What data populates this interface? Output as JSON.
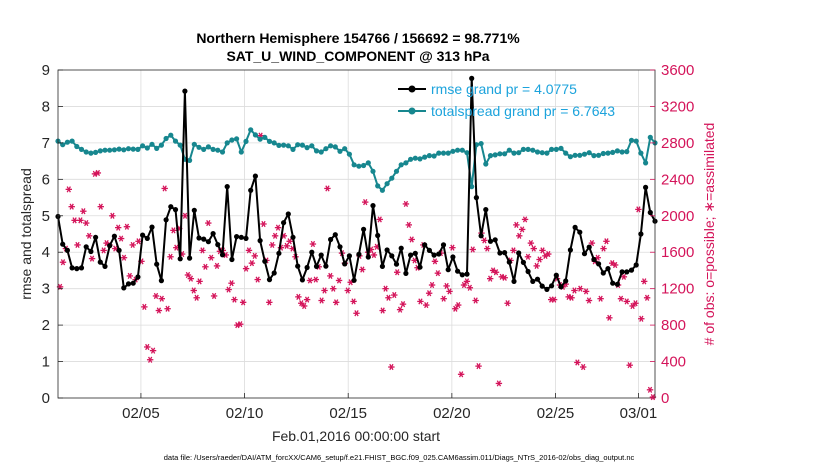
{
  "chart_data": {
    "type": "line",
    "title": "Northern Hemisphere 154766 / 156692 = 98.771%",
    "subtitle": "SAT_U_WIND_COMPONENT @ 313 hPa",
    "xlabel": "Feb.01,2016 00:00:00 start",
    "ylabel_left": "rmse and totalspread",
    "ylabel_right": "# of obs: o=possible; ∗=assimilated",
    "footer": "data file: /Users/raeder/DAI/ATM_forcXX/CAM6_setup/f.e21.FHIST_BGC.f09_025.CAM6assim.011/Diags_NTrS_2016-02/obs_diag_output.nc",
    "x_range_days": [
      1,
      29.8
    ],
    "x_ticks": [
      {
        "day": 5,
        "label": "02/05"
      },
      {
        "day": 10,
        "label": "02/10"
      },
      {
        "day": 15,
        "label": "02/15"
      },
      {
        "day": 20,
        "label": "02/20"
      },
      {
        "day": 25,
        "label": "02/25"
      },
      {
        "day": 29,
        "label": "03/01"
      }
    ],
    "y_left": {
      "min": 0,
      "max": 9,
      "ticks": [
        "0",
        "1",
        "2",
        "3",
        "4",
        "5",
        "6",
        "7",
        "8",
        "9"
      ]
    },
    "y_right": {
      "min": 0,
      "max": 3600,
      "ticks": [
        "0",
        "400",
        "800",
        "1200",
        "1600",
        "2000",
        "2400",
        "2800",
        "3200",
        "3600"
      ]
    },
    "colors": {
      "rmse": "#000000",
      "spread": "#17878f",
      "obs": "#d4145a",
      "legend_text": "#1ca3dc",
      "right_axis": "#d4145a"
    },
    "series": [
      {
        "name": "rmse grand pr = 4.0775",
        "axis": "left",
        "values": [
          4.98,
          4.22,
          4.05,
          3.57,
          3.55,
          3.57,
          4.15,
          4.02,
          4.41,
          3.73,
          3.61,
          4.18,
          4.44,
          4.05,
          3.02,
          3.13,
          3.15,
          3.32,
          4.47,
          4.38,
          4.69,
          3.67,
          3.22,
          4.89,
          5.25,
          5.17,
          3.82,
          8.42,
          3.84,
          5.15,
          4.39,
          4.36,
          4.29,
          4.51,
          4.21,
          3.93,
          5.8,
          3.8,
          4.43,
          4.41,
          4.38,
          5.7,
          6.09,
          4.32,
          3.75,
          3.25,
          3.43,
          3.97,
          4.81,
          5.05,
          4.41,
          3.62,
          3.24,
          3.58,
          4.0,
          3.61,
          3.92,
          3.62,
          4.35,
          4.48,
          4.15,
          3.68,
          3.9,
          3.23,
          3.94,
          4.63,
          3.87,
          5.28,
          4.46,
          3.61,
          4.06,
          3.9,
          3.67,
          4.11,
          3.42,
          3.92,
          3.97,
          3.59,
          4.2,
          4.05,
          3.92,
          3.95,
          4.2,
          3.52,
          3.87,
          3.48,
          3.38,
          3.4,
          8.77,
          5.5,
          4.45,
          5.17,
          4.3,
          4.34,
          3.98,
          3.99,
          3.73,
          3.2,
          3.98,
          3.72,
          3.47,
          3.2,
          3.26,
          3.07,
          2.98,
          3.08,
          3.37,
          3.05,
          3.21,
          4.06,
          4.68,
          4.55,
          3.96,
          4.14,
          3.8,
          3.68,
          3.43,
          3.55,
          3.15,
          3.12,
          3.46,
          3.46,
          3.51,
          3.65,
          4.5,
          5.78,
          5.09,
          4.85
        ]
      },
      {
        "name": "totalspread grand pr = 6.7643",
        "axis": "left",
        "values": [
          7.05,
          6.95,
          7.02,
          7.05,
          6.9,
          6.82,
          6.75,
          6.72,
          6.74,
          6.78,
          6.8,
          6.8,
          6.81,
          6.83,
          6.81,
          6.84,
          6.83,
          6.82,
          6.92,
          6.86,
          6.96,
          6.85,
          6.94,
          7.12,
          7.21,
          7.05,
          6.94,
          6.55,
          6.52,
          6.96,
          6.88,
          6.82,
          6.89,
          6.82,
          6.8,
          6.75,
          7.0,
          7.08,
          7.11,
          6.75,
          7.04,
          7.36,
          7.22,
          7.1,
          7.15,
          7.04,
          7.0,
          6.93,
          6.94,
          6.92,
          6.82,
          6.95,
          6.94,
          6.87,
          6.92,
          6.78,
          6.75,
          6.84,
          6.92,
          6.89,
          6.77,
          6.84,
          6.69,
          6.4,
          6.36,
          6.38,
          6.45,
          6.22,
          5.82,
          5.7,
          5.88,
          6.03,
          6.22,
          6.4,
          6.45,
          6.55,
          6.58,
          6.56,
          6.61,
          6.65,
          6.64,
          6.72,
          6.72,
          6.72,
          6.77,
          6.8,
          6.8,
          6.73,
          5.8,
          6.95,
          6.98,
          6.42,
          6.65,
          6.67,
          6.7,
          6.7,
          6.8,
          6.72,
          6.73,
          6.82,
          6.82,
          6.8,
          6.75,
          6.73,
          6.72,
          6.82,
          6.82,
          6.85,
          6.72,
          6.62,
          6.66,
          6.66,
          6.69,
          6.73,
          6.65,
          6.66,
          6.71,
          6.72,
          6.74,
          6.78,
          6.75,
          6.76,
          7.07,
          7.05,
          6.72,
          6.45,
          7.15,
          7.0
        ]
      },
      {
        "name": "assimilated",
        "axis": "right",
        "marker": "asterisk",
        "values": [
          1220,
          1490,
          1640,
          2290,
          2100,
          1950,
          1680,
          1950,
          2050,
          1920,
          1780,
          1530,
          2460,
          2470,
          2100,
          1620,
          1700,
          1680,
          2000,
          1640,
          1870,
          1750,
          1540,
          1880,
          1340,
          1680,
          1300,
          1720,
          1500,
          1000,
          560,
          420,
          520,
          1120,
          960,
          1090,
          2300,
          980,
          1550,
          1840,
          1650,
          1860,
          1580,
          2000,
          1350,
          1310,
          1180,
          1100,
          1280,
          1620,
          1440,
          1920,
          1540,
          1120,
          1450,
          1610,
          1620,
          1570,
          1190,
          1260,
          1080,
          800,
          810,
          1050,
          1420,
          1620,
          1480,
          1560,
          1300,
          2880,
          1910,
          1510,
          1050,
          1680,
          1780,
          1870,
          1650,
          1780,
          1670,
          1720,
          1640,
          1550,
          1110,
          1040,
          1010,
          1080,
          1290,
          1690,
          1300,
          1440,
          1070,
          1180,
          2300,
          1340,
          1200,
          1050,
          1290,
          1590,
          1480,
          1180,
          1270,
          1060,
          930,
          1560,
          1410,
          2150,
          1600,
          1630,
          1570,
          1660,
          1960,
          960,
          1200,
          1100,
          340,
          1130,
          1380,
          970,
          1030,
          2130,
          1900,
          1740,
          1510,
          1430,
          1060,
          1680,
          1020,
          1150,
          1240,
          1500,
          1370,
          1590,
          1090,
          1230,
          1170,
          1650,
          980,
          1020,
          260,
          1240,
          1280,
          1210,
          1630,
          1070,
          350,
          1810,
          1730,
          1640,
          1310,
          1400,
          1380,
          160,
          1330,
          1320,
          1040,
          1510,
          1620,
          1900,
          1780,
          1850,
          1960,
          1550,
          1700,
          1640,
          1450,
          1520,
          1620,
          1560,
          1580,
          1080,
          1080,
          1310,
          1240,
          1220,
          1250,
          1110,
          1100,
          1180,
          390,
          1200,
          340,
          1170,
          1070,
          1700,
          1500,
          1540,
          1090,
          1640,
          1720,
          880,
          1480,
          1460,
          1240,
          1090,
          1330,
          1060,
          360,
          1010,
          1040,
          2070,
          870,
          1280,
          1100,
          90,
          10
        ]
      }
    ]
  }
}
